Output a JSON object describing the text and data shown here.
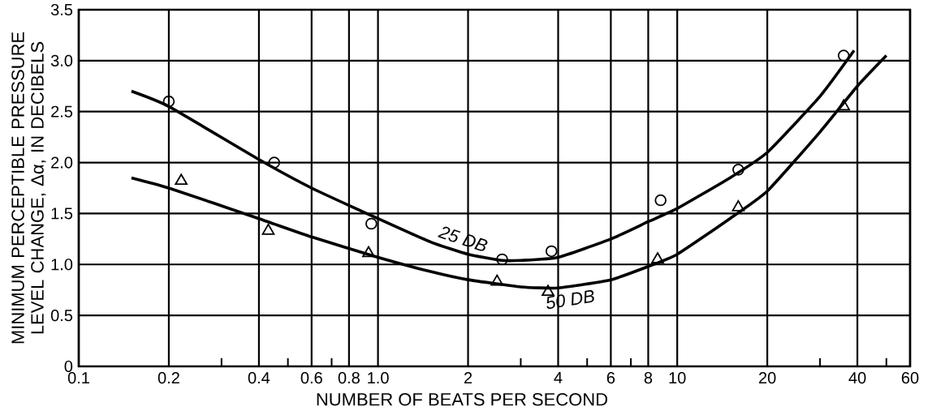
{
  "chart_data": {
    "type": "scatter",
    "xlabel": "NUMBER OF BEATS PER SECOND",
    "ylabel": "MINIMUM PERCEPTIBLE PRESSURE LEVEL CHANGE, Δα, IN DECIBELS",
    "log": "x",
    "xlim": [
      0.1,
      60
    ],
    "ylim": [
      0,
      3.5
    ],
    "xticks": [
      0.1,
      0.2,
      {
        "value": 0.3,
        "label": null
      },
      0.4,
      {
        "value": 0.5,
        "label": null
      },
      0.6,
      {
        "value": 0.7,
        "label": null
      },
      0.8,
      {
        "value": 1.0,
        "label": "1.0"
      },
      2,
      {
        "value": 3,
        "label": null
      },
      4,
      {
        "value": 5,
        "label": null
      },
      6,
      {
        "value": 7,
        "label": null
      },
      8,
      10,
      20,
      {
        "value": 30,
        "label": null
      },
      40,
      {
        "value": 50,
        "label": null
      },
      60
    ],
    "yticks": [
      {
        "value": 0,
        "label": "0"
      },
      0.5,
      {
        "value": 1,
        "label": "1.0"
      },
      1.5,
      {
        "value": 2,
        "label": "2.0"
      },
      2.5,
      {
        "value": 3,
        "label": "3.0"
      },
      3.5
    ],
    "grid": true,
    "series": [
      {
        "marker": "circle",
        "color": "#000000",
        "x": [
          0.2,
          0.45,
          0.95,
          2.6,
          3.8,
          8.8,
          16,
          36
        ],
        "values": [
          2.6,
          2.0,
          1.4,
          1.05,
          1.13,
          1.63,
          1.93,
          3.05
        ]
      },
      {
        "marker": "triangle",
        "color": "#000000",
        "x": [
          0.22,
          0.43,
          0.93,
          2.5,
          3.7,
          8.6,
          16,
          36
        ],
        "values": [
          1.82,
          1.33,
          1.11,
          0.83,
          0.73,
          1.05,
          1.56,
          2.55
        ]
      },
      {
        "type": "line",
        "name": "25 DB",
        "marker": "none",
        "color": "#000000",
        "x": [
          0.15,
          0.2,
          0.4,
          0.6,
          1.0,
          1.5,
          2,
          2.6,
          3,
          4,
          6,
          8,
          10,
          15,
          20,
          30,
          39
        ],
        "values": [
          2.7,
          2.55,
          2.03,
          1.75,
          1.45,
          1.22,
          1.1,
          1.04,
          1.04,
          1.07,
          1.25,
          1.42,
          1.55,
          1.85,
          2.1,
          2.65,
          3.1
        ]
      },
      {
        "type": "line",
        "name": "50 DB",
        "marker": "none",
        "color": "#000000",
        "x": [
          0.15,
          0.2,
          0.4,
          0.6,
          1.0,
          1.5,
          2,
          3,
          4,
          6,
          8,
          10,
          15,
          20,
          30,
          40,
          50
        ],
        "values": [
          1.85,
          1.75,
          1.45,
          1.27,
          1.07,
          0.93,
          0.85,
          0.78,
          0.77,
          0.85,
          0.98,
          1.1,
          1.45,
          1.72,
          2.3,
          2.75,
          3.05
        ]
      }
    ]
  }
}
